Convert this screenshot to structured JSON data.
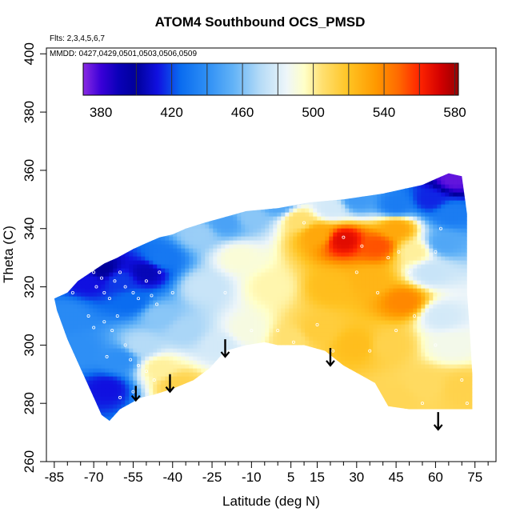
{
  "chart_data": {
    "type": "heatmap",
    "title": "ATOM4 Southbound OCS_PMSD",
    "annotation_flights": "Flts: 2,3,4,5,6,7",
    "annotation_dates": "MMDD: 0427,0429,0501,0503,0506,0509",
    "xlabel": "Latitude (deg N)",
    "ylabel": "Theta (C)",
    "xlim": [
      -88,
      83
    ],
    "ylim": [
      260,
      402
    ],
    "x_ticks": [
      -85,
      -70,
      -55,
      -40,
      -25,
      -10,
      5,
      15,
      30,
      45,
      60,
      75
    ],
    "x_tick_labels": [
      "-85",
      "-70",
      "-55",
      "-40",
      "-25",
      "-10",
      "5",
      "15",
      "30",
      "45",
      "60",
      "75"
    ],
    "x_minor_ticks": [
      -80,
      -75,
      -65,
      -60,
      -50,
      -45,
      -35,
      -30,
      -20,
      -15,
      -5,
      0,
      10,
      20,
      25,
      35,
      40,
      50,
      55,
      65,
      70,
      80
    ],
    "y_ticks": [
      260,
      280,
      300,
      320,
      340,
      360,
      380,
      400
    ],
    "y_tick_labels": [
      "260",
      "280",
      "300",
      "320",
      "340",
      "360",
      "380",
      "400"
    ],
    "colorbar": {
      "range": [
        370,
        582
      ],
      "ticks": [
        380,
        420,
        460,
        500,
        540,
        580
      ],
      "tick_labels": [
        "380",
        "420",
        "460",
        "500",
        "540",
        "580"
      ],
      "dividers": [
        400,
        420,
        440,
        460,
        480,
        500,
        520,
        540,
        560,
        580
      ],
      "stops": [
        {
          "v": 370,
          "c": "#8a2be2"
        },
        {
          "v": 380,
          "c": "#3a00d8"
        },
        {
          "v": 390,
          "c": "#0a00b8"
        },
        {
          "v": 400,
          "c": "#00009a"
        },
        {
          "v": 412,
          "c": "#1010e0"
        },
        {
          "v": 425,
          "c": "#0a6cf0"
        },
        {
          "v": 440,
          "c": "#2e8ff5"
        },
        {
          "v": 455,
          "c": "#63b3f7"
        },
        {
          "v": 470,
          "c": "#b5dbf7"
        },
        {
          "v": 485,
          "c": "#eef6f9"
        },
        {
          "v": 495,
          "c": "#ffffc8"
        },
        {
          "v": 505,
          "c": "#ffe070"
        },
        {
          "v": 520,
          "c": "#ffc322"
        },
        {
          "v": 535,
          "c": "#ff9a00"
        },
        {
          "v": 548,
          "c": "#ff6a00"
        },
        {
          "v": 560,
          "c": "#ff2400"
        },
        {
          "v": 572,
          "c": "#d20000"
        },
        {
          "v": 582,
          "c": "#980000"
        }
      ]
    },
    "field_outline": [
      [
        -85,
        316
      ],
      [
        -80,
        318
      ],
      [
        -76,
        322
      ],
      [
        -71,
        325
      ],
      [
        -66,
        328
      ],
      [
        -61,
        330
      ],
      [
        -55,
        333
      ],
      [
        -50,
        335
      ],
      [
        -45,
        337
      ],
      [
        -40,
        338
      ],
      [
        -35,
        340
      ],
      [
        -28,
        342
      ],
      [
        -20,
        344
      ],
      [
        -12,
        346
      ],
      [
        0,
        347
      ],
      [
        12,
        349
      ],
      [
        25,
        350
      ],
      [
        40,
        352
      ],
      [
        55,
        355
      ],
      [
        60,
        357
      ],
      [
        65,
        359
      ],
      [
        70,
        358
      ],
      [
        72,
        345
      ],
      [
        72,
        330
      ],
      [
        72,
        318
      ],
      [
        73,
        305
      ],
      [
        74,
        290
      ],
      [
        74,
        278
      ],
      [
        60,
        278
      ],
      [
        50,
        278
      ],
      [
        42,
        279
      ],
      [
        37,
        287
      ],
      [
        31,
        290
      ],
      [
        25,
        293
      ],
      [
        18,
        298
      ],
      [
        10,
        300
      ],
      [
        0,
        300
      ],
      [
        -5,
        301
      ],
      [
        -12,
        300
      ],
      [
        -20,
        298
      ],
      [
        -26,
        292
      ],
      [
        -32,
        288
      ],
      [
        -40,
        285
      ],
      [
        -47,
        283
      ],
      [
        -52,
        282
      ],
      [
        -56,
        280
      ],
      [
        -60,
        278
      ],
      [
        -64,
        274
      ],
      [
        -67,
        276
      ],
      [
        -70,
        282
      ],
      [
        -75,
        292
      ],
      [
        -80,
        302
      ],
      [
        -84,
        312
      ]
    ],
    "value_anchors": [
      [
        -80,
        310,
        438
      ],
      [
        -72,
        322,
        412
      ],
      [
        -67,
        326,
        400
      ],
      [
        -60,
        322,
        418
      ],
      [
        -56,
        315,
        425
      ],
      [
        -50,
        325,
        405
      ],
      [
        -44,
        330,
        430
      ],
      [
        -75,
        298,
        440
      ],
      [
        -65,
        285,
        412
      ],
      [
        -60,
        295,
        440
      ],
      [
        -52,
        300,
        470
      ],
      [
        -45,
        292,
        500
      ],
      [
        -38,
        286,
        512
      ],
      [
        -45,
        310,
        462
      ],
      [
        -35,
        305,
        468
      ],
      [
        -28,
        320,
        475
      ],
      [
        -30,
        338,
        465
      ],
      [
        -20,
        342,
        448
      ],
      [
        -10,
        344,
        462
      ],
      [
        -15,
        330,
        492
      ],
      [
        -22,
        300,
        478
      ],
      [
        -12,
        305,
        490
      ],
      [
        -2,
        320,
        498
      ],
      [
        8,
        343,
        505
      ],
      [
        5,
        302,
        505
      ],
      [
        15,
        338,
        530
      ],
      [
        25,
        336,
        568
      ],
      [
        38,
        334,
        552
      ],
      [
        45,
        340,
        530
      ],
      [
        20,
        320,
        522
      ],
      [
        35,
        322,
        525
      ],
      [
        48,
        315,
        540
      ],
      [
        42,
        300,
        512
      ],
      [
        30,
        300,
        522
      ],
      [
        15,
        305,
        515
      ],
      [
        52,
        332,
        500
      ],
      [
        58,
        325,
        475
      ],
      [
        62,
        310,
        478
      ],
      [
        66,
        300,
        488
      ],
      [
        70,
        285,
        512
      ],
      [
        56,
        286,
        508
      ],
      [
        45,
        282,
        510
      ],
      [
        63,
        335,
        450
      ],
      [
        66,
        345,
        432
      ],
      [
        67,
        357,
        375
      ],
      [
        58,
        350,
        415
      ],
      [
        45,
        348,
        432
      ],
      [
        30,
        350,
        445
      ],
      [
        20,
        347,
        478
      ],
      [
        0,
        348,
        450
      ]
    ],
    "arrows": [
      {
        "lat": -54,
        "theta_top": 286,
        "theta_tip": 281
      },
      {
        "lat": -41,
        "theta_top": 290,
        "theta_tip": 284
      },
      {
        "lat": -20,
        "theta_top": 302,
        "theta_tip": 296
      },
      {
        "lat": 20,
        "theta_top": 299,
        "theta_tip": 293
      },
      {
        "lat": 61,
        "theta_top": 277,
        "theta_tip": 271
      }
    ],
    "sample_points": [
      [
        -78,
        318
      ],
      [
        -70,
        325
      ],
      [
        -69,
        320
      ],
      [
        -67,
        323
      ],
      [
        -66,
        318
      ],
      [
        -64,
        316
      ],
      [
        -62,
        322
      ],
      [
        -60,
        325
      ],
      [
        -58,
        320
      ],
      [
        -55,
        318
      ],
      [
        -53,
        316
      ],
      [
        -50,
        322
      ],
      [
        -48,
        317
      ],
      [
        -46,
        314
      ],
      [
        -66,
        308
      ],
      [
        -63,
        305
      ],
      [
        -61,
        310
      ],
      [
        -58,
        300
      ],
      [
        -56,
        295
      ],
      [
        -53,
        293
      ],
      [
        -50,
        291
      ],
      [
        -47,
        288
      ],
      [
        -60,
        282
      ],
      [
        -55,
        284
      ],
      [
        -65,
        296
      ],
      [
        -70,
        306
      ],
      [
        -72,
        310
      ],
      [
        -45,
        325
      ],
      [
        -40,
        318
      ],
      [
        -20,
        318
      ],
      [
        -10,
        305
      ],
      [
        0,
        305
      ],
      [
        6,
        301
      ],
      [
        15,
        307
      ],
      [
        21,
        298
      ],
      [
        25,
        337
      ],
      [
        32,
        334
      ],
      [
        42,
        330
      ],
      [
        46,
        332
      ],
      [
        50,
        325
      ],
      [
        60,
        332
      ],
      [
        62,
        340
      ],
      [
        30,
        325
      ],
      [
        38,
        318
      ],
      [
        52,
        310
      ],
      [
        60,
        300
      ],
      [
        70,
        288
      ],
      [
        72,
        280
      ],
      [
        45,
        305
      ],
      [
        35,
        298
      ],
      [
        10,
        342
      ],
      [
        -5,
        300
      ],
      [
        55,
        280
      ],
      [
        40,
        280
      ]
    ]
  }
}
